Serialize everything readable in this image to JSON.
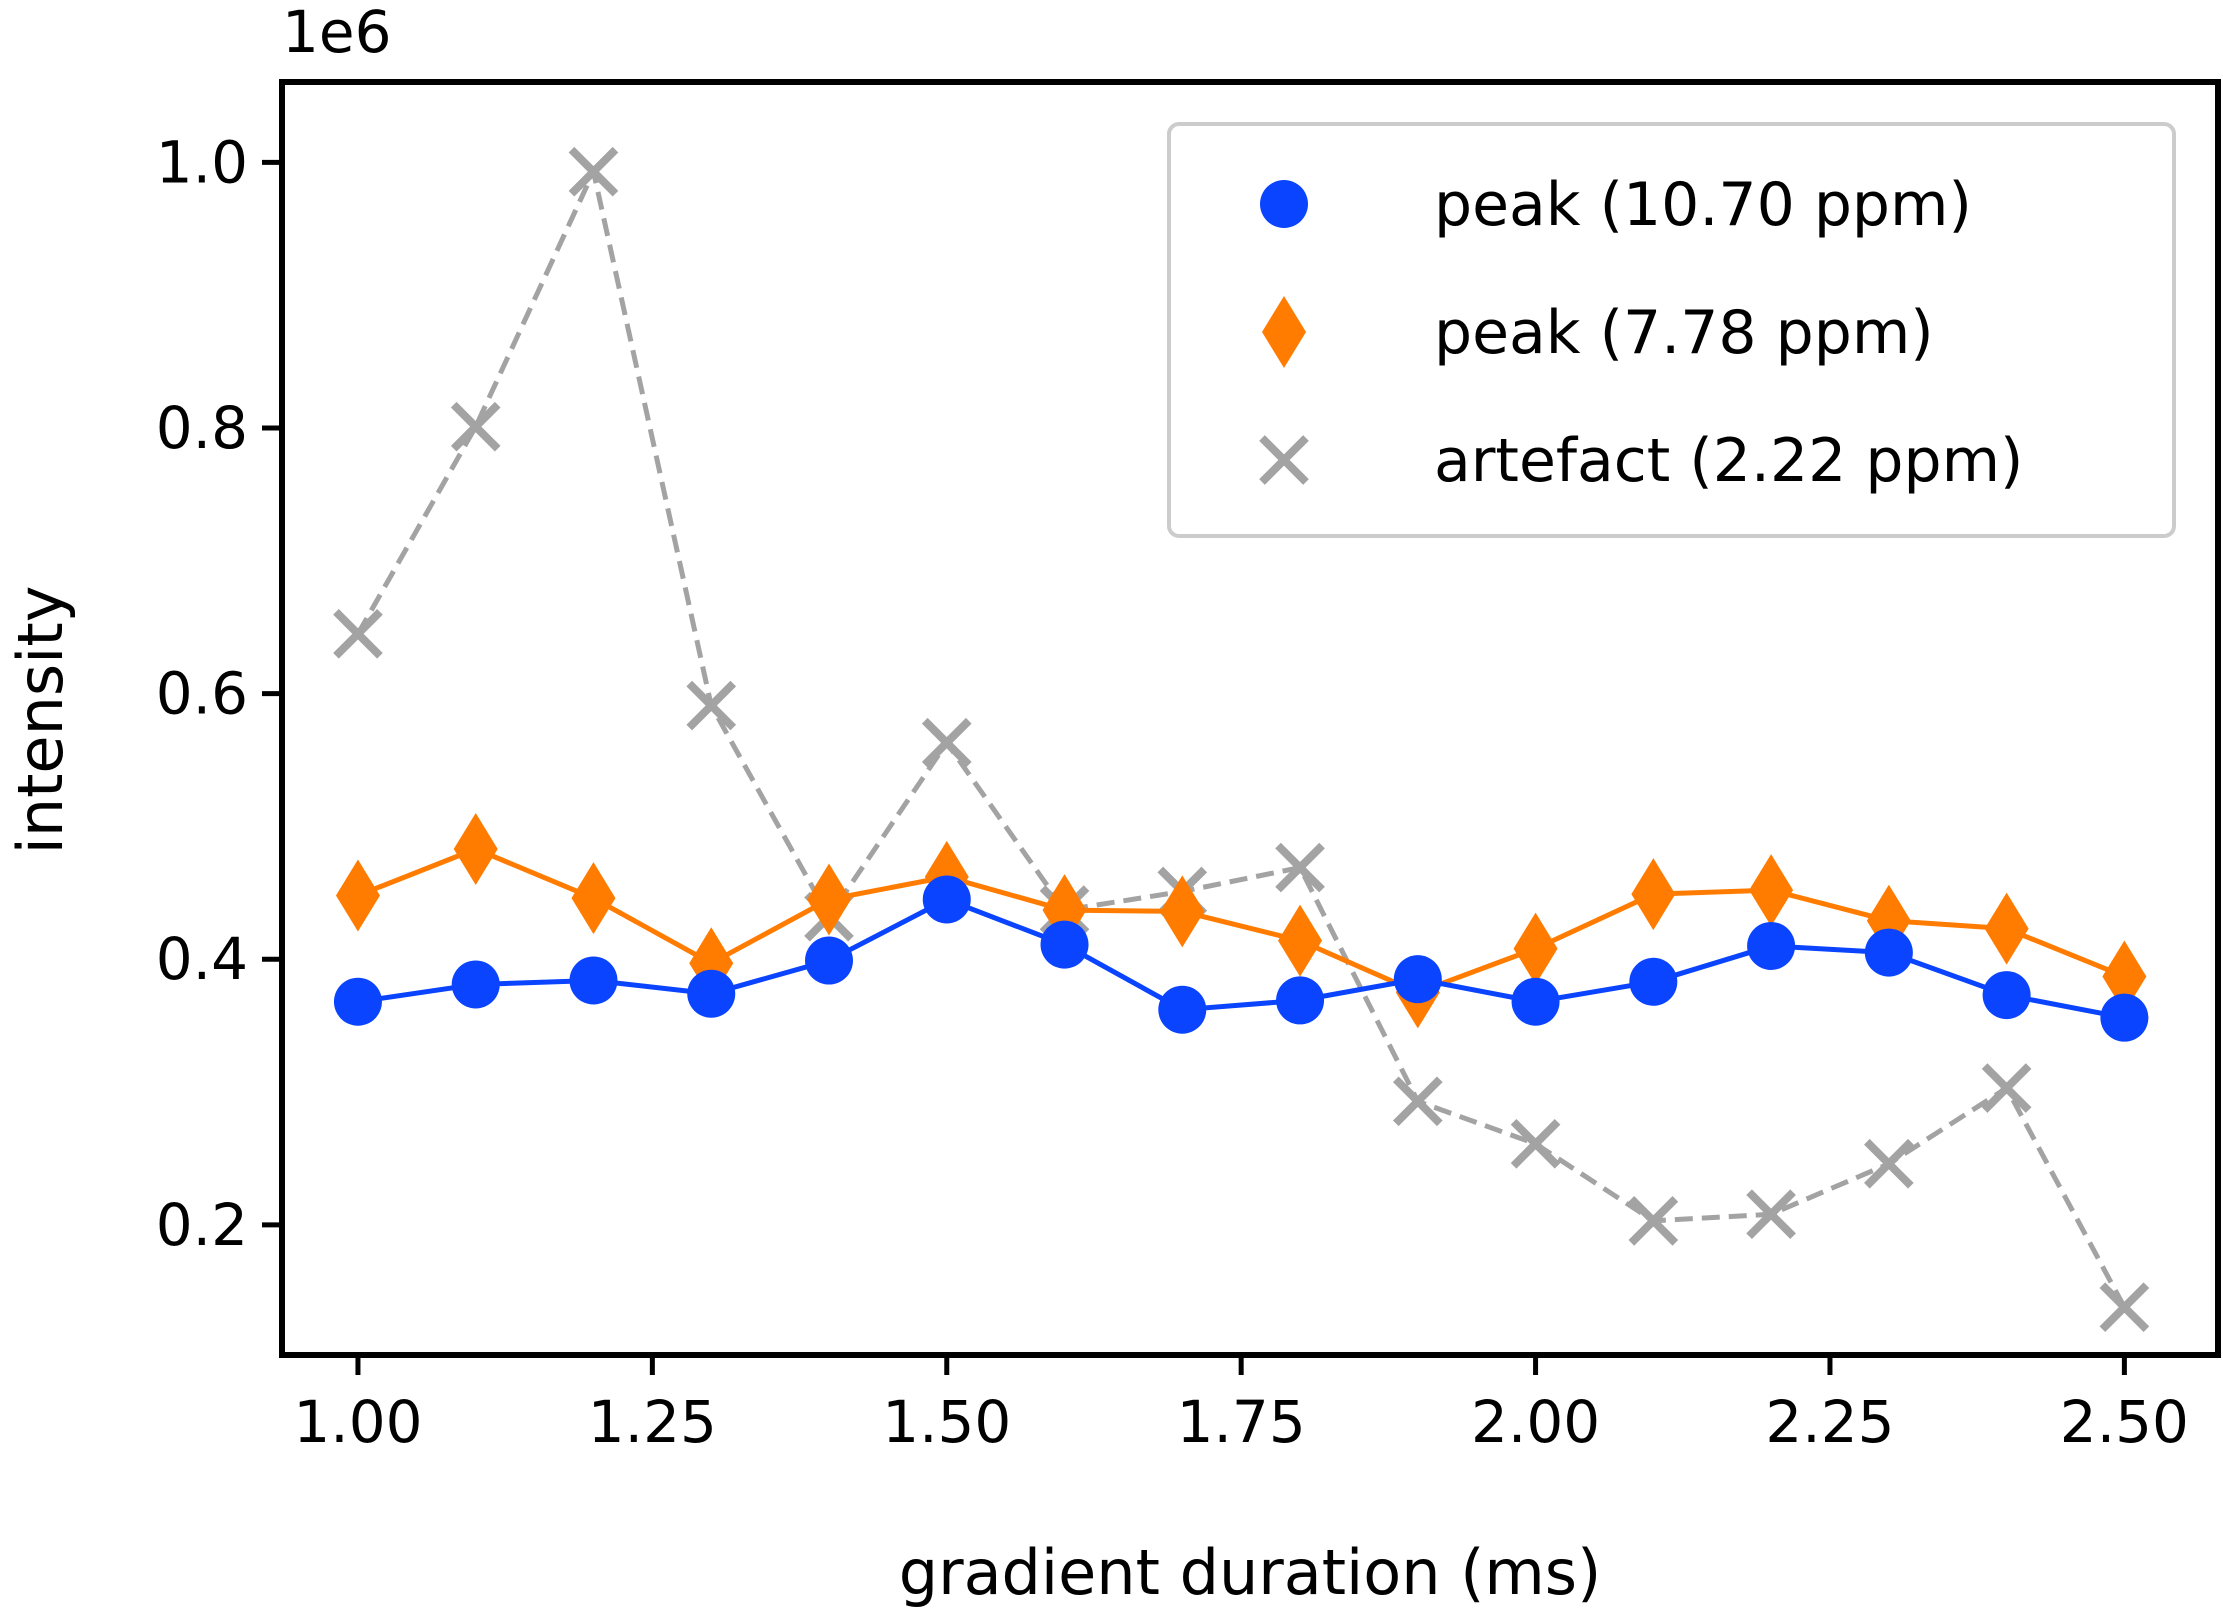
{
  "chart_data": {
    "type": "line",
    "xlabel": "gradient duration (ms)",
    "ylabel": "intensity",
    "y_offset_label": "1e6",
    "y_scale_factor": 1000000,
    "xlim": [
      0.9355,
      2.5795
    ],
    "ylim": [
      0.102,
      1.0605
    ],
    "x_ticks": [
      1.0,
      1.25,
      1.5,
      1.75,
      2.0,
      2.25,
      2.5
    ],
    "x_tick_labels": [
      "1.00",
      "1.25",
      "1.50",
      "1.75",
      "2.00",
      "2.25",
      "2.50"
    ],
    "y_ticks": [
      0.2,
      0.4,
      0.6,
      0.8,
      1.0
    ],
    "y_tick_labels": [
      "0.2",
      "0.4",
      "0.6",
      "0.8",
      "1.0"
    ],
    "grid": false,
    "legend_position": "top-right",
    "x": [
      1.0,
      1.1,
      1.2,
      1.3,
      1.4,
      1.5,
      1.6,
      1.7,
      1.8,
      1.9,
      2.0,
      2.1,
      2.2,
      2.3,
      2.4,
      2.5
    ],
    "series": [
      {
        "name": "peak (10.70 ppm)",
        "color": "#0a44ff",
        "marker": "circle",
        "linestyle": "solid",
        "values": [
          0.368,
          0.381,
          0.384,
          0.374,
          0.399,
          0.445,
          0.411,
          0.362,
          0.369,
          0.385,
          0.368,
          0.383,
          0.41,
          0.405,
          0.373,
          0.356
        ]
      },
      {
        "name": "peak (7.78 ppm)",
        "color": "#ff7c00",
        "marker": "diamond",
        "linestyle": "solid",
        "values": [
          0.448,
          0.483,
          0.446,
          0.397,
          0.445,
          0.462,
          0.437,
          0.436,
          0.414,
          0.375,
          0.408,
          0.449,
          0.452,
          0.429,
          0.423,
          0.387
        ]
      },
      {
        "name": "artefact (2.22 ppm)",
        "color": "#a3a3a3",
        "marker": "x",
        "linestyle": "dashed",
        "values": [
          0.645,
          0.801,
          0.993,
          0.591,
          0.432,
          0.563,
          0.437,
          0.451,
          0.469,
          0.293,
          0.261,
          0.203,
          0.208,
          0.246,
          0.303,
          0.138
        ]
      }
    ]
  }
}
